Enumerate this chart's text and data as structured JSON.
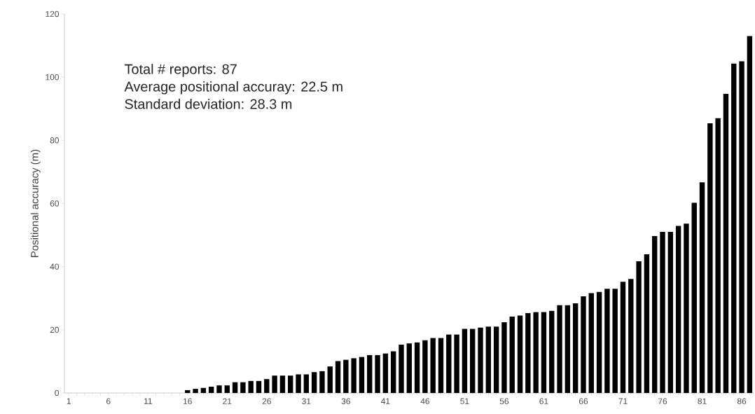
{
  "chart_data": {
    "type": "bar",
    "ylabel": "Positional accuracy (m)",
    "categories": [
      "1",
      null,
      null,
      null,
      null,
      "6",
      null,
      null,
      null,
      null,
      "11",
      null,
      null,
      null,
      null,
      "16",
      null,
      null,
      null,
      null,
      "21",
      null,
      null,
      null,
      null,
      "26",
      null,
      null,
      null,
      null,
      "31",
      null,
      null,
      null,
      null,
      "36",
      null,
      null,
      null,
      null,
      "41",
      null,
      null,
      null,
      null,
      "46",
      null,
      null,
      null,
      null,
      "51",
      null,
      null,
      null,
      null,
      "56",
      null,
      null,
      null,
      null,
      "61",
      null,
      null,
      null,
      null,
      "66",
      null,
      null,
      null,
      null,
      "71",
      null,
      null,
      null,
      null,
      "76",
      null,
      null,
      null,
      null,
      "81",
      null,
      null,
      null,
      null,
      "86",
      null
    ],
    "values": [
      0,
      0,
      0,
      0,
      0,
      0,
      0,
      0,
      0,
      0,
      0,
      0,
      0,
      0,
      0,
      0.9,
      1.3,
      1.6,
      2.0,
      2.4,
      2.4,
      3.4,
      3.4,
      3.8,
      3.8,
      4.4,
      5.5,
      5.5,
      5.5,
      5.9,
      5.9,
      6.6,
      6.9,
      8.4,
      10.1,
      10.5,
      11.0,
      11.4,
      12.0,
      12.0,
      12.5,
      13.2,
      15.3,
      15.7,
      16.0,
      16.7,
      17.4,
      17.4,
      18.5,
      18.5,
      20.3,
      20.3,
      20.7,
      21.0,
      21.0,
      22.4,
      24.2,
      24.5,
      25.3,
      25.6,
      25.6,
      26.0,
      27.8,
      27.8,
      28.4,
      30.6,
      31.6,
      32.0,
      33.0,
      33.0,
      35.2,
      36.1,
      41.7,
      43.9,
      49.7,
      51.0,
      51.0,
      52.9,
      53.6,
      60.2,
      66.7,
      85.4,
      87.0,
      94.7,
      104.3,
      105.0,
      113.0
    ],
    "color": "#000000",
    "ylim": [
      0,
      120
    ],
    "yticks": [
      0,
      20,
      40,
      60,
      80,
      100,
      120
    ],
    "annotations": [
      "Total # reports: 87",
      "Average positional accuray: 22.5 m",
      "Standard deviation: 28.3 m"
    ]
  }
}
